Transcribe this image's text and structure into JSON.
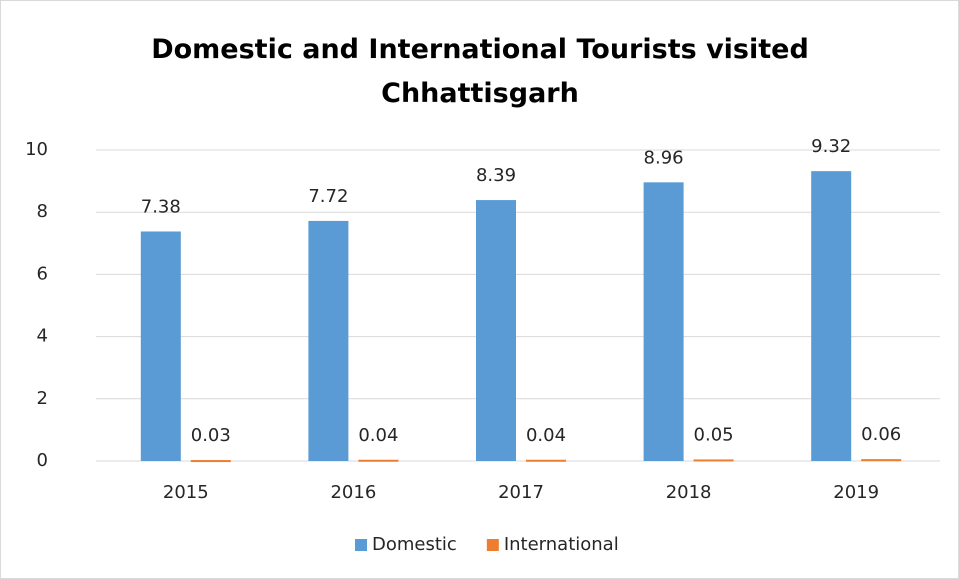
{
  "chart_data": {
    "type": "bar",
    "title": "Domestic and International Tourists visited Chhattisgarh",
    "categories": [
      "2015",
      "2016",
      "2017",
      "2018",
      "2019"
    ],
    "series": [
      {
        "name": "Domestic",
        "color": "#5b9bd5",
        "values": [
          7.38,
          7.72,
          8.39,
          8.96,
          9.32
        ]
      },
      {
        "name": "International",
        "color": "#ed7d31",
        "values": [
          0.03,
          0.04,
          0.04,
          0.05,
          0.06
        ]
      }
    ],
    "ylim": [
      0,
      10
    ],
    "yticks": [
      0,
      2,
      4,
      6,
      8,
      10
    ],
    "grid": true,
    "legend": "bottom"
  }
}
